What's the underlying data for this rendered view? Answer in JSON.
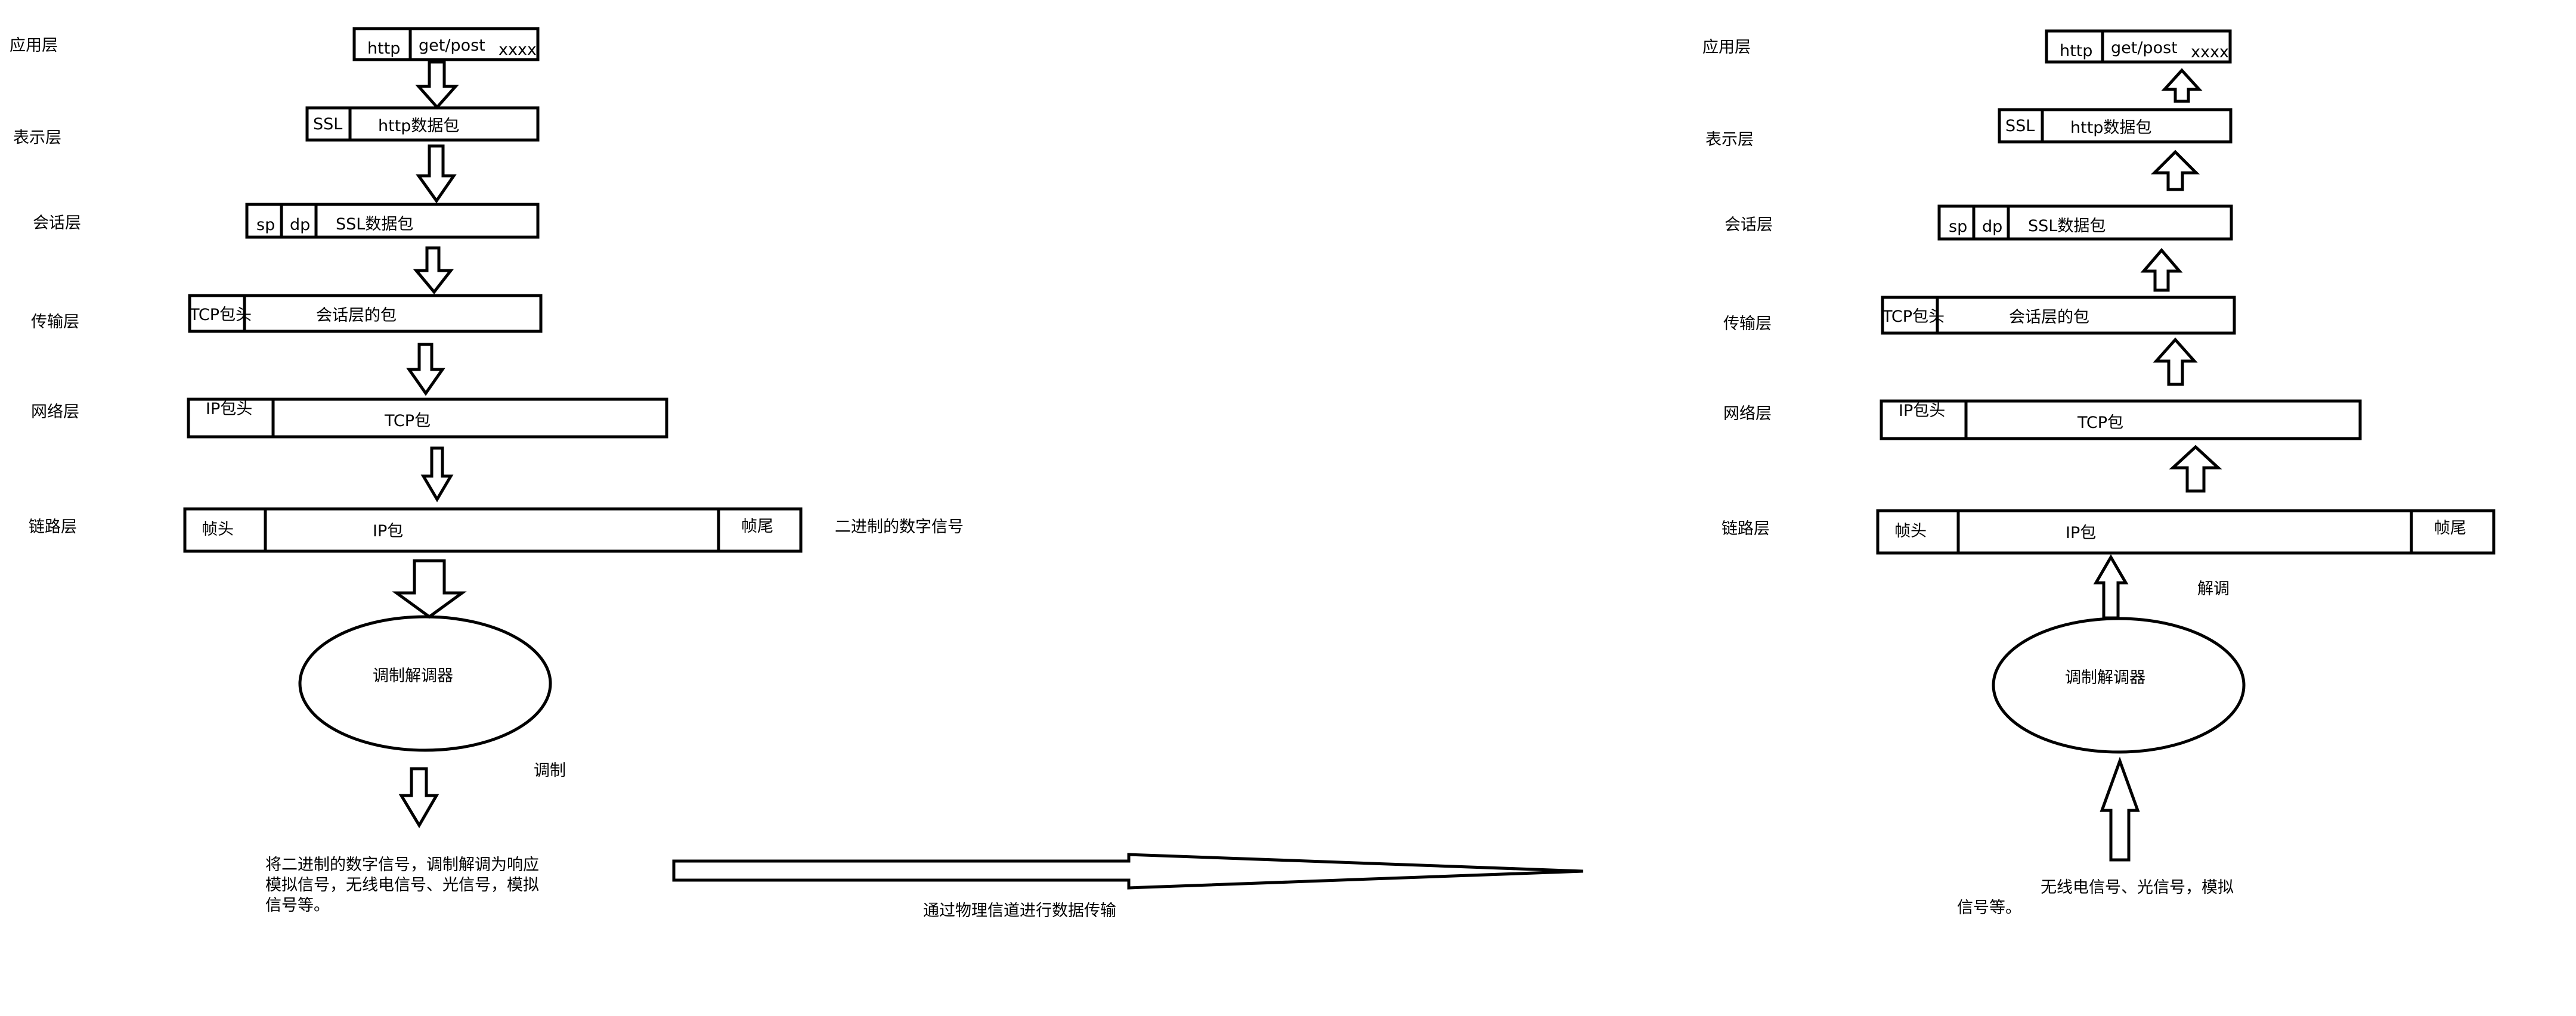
{
  "sender": {
    "layers": [
      "应用层",
      "表示层",
      "会话层",
      "传输层",
      "网络层",
      "链路层"
    ],
    "app_packet": [
      "http",
      "get/post",
      "xxxx"
    ],
    "presentation_packet": [
      "SSL",
      "http数据包"
    ],
    "session_packet": [
      "sp",
      "dp",
      "SSL数据包"
    ],
    "transport_packet": [
      "TCP包头",
      "会话层的包"
    ],
    "network_packet": [
      "IP包头",
      "TCP包"
    ],
    "link_packet": [
      "帧头",
      "IP包",
      "帧尾"
    ],
    "link_note": "二进制的数字信号",
    "modem": "调制解调器",
    "modulate_label": "调制",
    "description": [
      "将二进制的数字信号，调制解调为响应",
      "模拟信号，无线电信号、光信号，模拟",
      "信号等。"
    ]
  },
  "channel_label": "通过物理信道进行数据传输",
  "receiver": {
    "layers": [
      "应用层",
      "表示层",
      "会话层",
      "传输层",
      "网络层",
      "链路层"
    ],
    "app_packet": [
      "http",
      "get/post",
      "xxxx"
    ],
    "presentation_packet": [
      "SSL",
      "http数据包"
    ],
    "session_packet": [
      "sp",
      "dp",
      "SSL数据包"
    ],
    "transport_packet": [
      "TCP包头",
      "会话层的包"
    ],
    "network_packet": [
      "IP包头",
      "TCP包"
    ],
    "link_packet": [
      "帧头",
      "IP包",
      "帧尾"
    ],
    "demodulate_label": "解调",
    "modem": "调制解调器",
    "description": [
      "无线电信号、光信号，模拟",
      "信号等。"
    ]
  }
}
